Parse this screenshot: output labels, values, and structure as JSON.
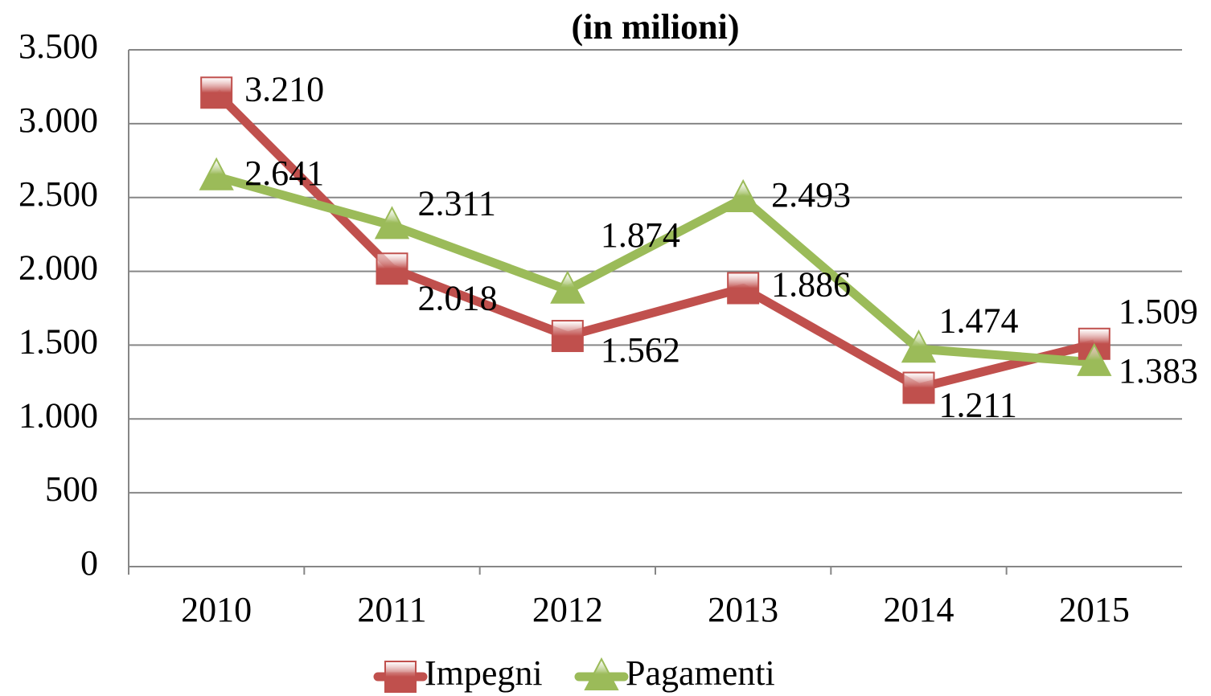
{
  "chart_data": {
    "type": "line",
    "title": "(in milioni)",
    "categories": [
      "2010",
      "2011",
      "2012",
      "2013",
      "2014",
      "2015"
    ],
    "series": [
      {
        "name": "Impegni",
        "color": "#c0504d",
        "marker": "square",
        "values": [
          3210,
          2018,
          1562,
          1886,
          1211,
          1509
        ],
        "value_labels": [
          "3.210",
          "2.018",
          "1.562",
          "1.886",
          "1.211",
          "1.509"
        ]
      },
      {
        "name": "Pagamenti",
        "color": "#9bbb59",
        "marker": "triangle",
        "values": [
          2641,
          2311,
          1874,
          2493,
          1474,
          1383
        ],
        "value_labels": [
          "2.641",
          "2.311",
          "1.874",
          "2.493",
          "1.474",
          "1.383"
        ]
      }
    ],
    "ylim": [
      0,
      3500
    ],
    "yticks": [
      0,
      500,
      {
        "value": 1000,
        "label": "1.000"
      },
      {
        "value": 1500,
        "label": "1.500"
      },
      {
        "value": 2000,
        "label": "2.000"
      },
      {
        "value": 2500,
        "label": "2.500"
      },
      {
        "value": 3000,
        "label": "3.000"
      },
      {
        "value": 3500,
        "label": "3.500"
      }
    ],
    "grid": true,
    "legend": "bottom"
  }
}
